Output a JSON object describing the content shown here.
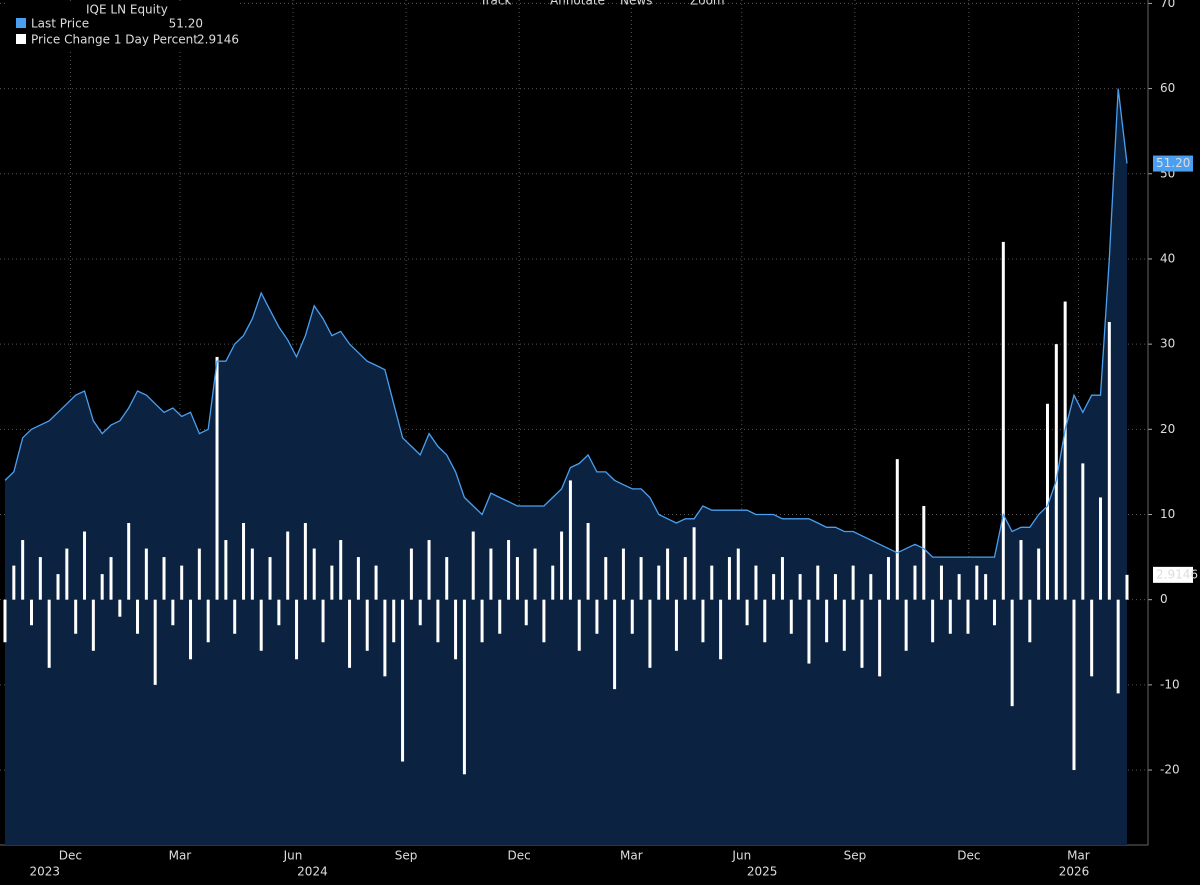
{
  "toolbar": [
    "Track",
    "Annotate",
    "News",
    "Zoom"
  ],
  "chart_data": {
    "type": "combo",
    "title": "IQE LN Equity",
    "xlim": [
      0,
      127
    ],
    "xticks": [
      {
        "value": 7.4,
        "label": "Dec"
      },
      {
        "value": 19.8,
        "label": "Mar"
      },
      {
        "value": 32.6,
        "label": "Jun"
      },
      {
        "value": 45.4,
        "label": "Sep"
      },
      {
        "value": 58.2,
        "label": "Dec"
      },
      {
        "value": 70.9,
        "label": "Mar"
      },
      {
        "value": 83.4,
        "label": "Jun"
      },
      {
        "value": 96.2,
        "label": "Sep"
      },
      {
        "value": 109.1,
        "label": "Dec"
      },
      {
        "value": 121.5,
        "label": "Mar"
      }
    ],
    "years": [
      {
        "value": 4.5,
        "label": "2023"
      },
      {
        "value": 34.8,
        "label": "2024"
      },
      {
        "value": 85.7,
        "label": "2025"
      },
      {
        "value": 121,
        "label": "2026"
      }
    ],
    "ylim": [
      -28.8,
      70.4
    ],
    "yticks": [
      70,
      60,
      50,
      40,
      30,
      20,
      10,
      0,
      -10,
      -20
    ],
    "grid": true,
    "series": [
      {
        "name": "Last Price",
        "type": "area",
        "color": "#4a9ff0",
        "fill": "#0b2240",
        "legend_value": "51.20",
        "values": [
          14,
          15,
          19,
          20,
          20.5,
          21,
          22,
          23,
          24,
          24.5,
          21,
          19.5,
          20.5,
          21,
          22.5,
          24.5,
          24,
          23,
          22,
          22.5,
          21.5,
          22,
          19.5,
          20,
          28,
          28,
          30,
          31,
          33,
          36,
          34,
          32,
          30.5,
          28.5,
          31,
          34.5,
          33,
          31,
          31.5,
          30,
          29,
          28,
          27.5,
          27,
          23,
          19,
          18,
          17,
          19.5,
          18,
          17,
          15,
          12,
          11,
          10,
          12.5,
          12,
          11.5,
          11,
          11,
          11,
          11,
          12,
          13,
          15.5,
          16,
          17,
          15,
          15,
          14,
          13.5,
          13,
          13,
          12,
          10,
          9.5,
          9,
          9.5,
          9.5,
          11,
          10.5,
          10.5,
          10.5,
          10.5,
          10.5,
          10,
          10,
          10,
          9.5,
          9.5,
          9.5,
          9.5,
          9,
          8.5,
          8.5,
          8,
          8,
          7.5,
          7,
          6.5,
          6,
          5.5,
          6,
          6.5,
          6,
          5,
          5,
          5,
          5,
          5,
          5,
          5,
          5,
          10,
          8,
          8.5,
          8.5,
          10,
          11,
          14,
          20,
          24,
          22,
          24,
          24,
          40,
          60,
          51.2
        ]
      },
      {
        "name": "Price Change 1 Day Percent",
        "type": "bar",
        "color": "#ffffff",
        "legend_value": "2.9146",
        "values": [
          -5,
          4,
          7,
          -3,
          5,
          -8,
          3,
          6,
          -4,
          8,
          -6,
          3,
          5,
          -2,
          9,
          -4,
          6,
          -10,
          5,
          -3,
          4,
          -7,
          6,
          -5,
          28.5,
          7,
          -4,
          9,
          6,
          -6,
          5,
          -3,
          8,
          -7,
          9,
          6,
          -5,
          4,
          7,
          -8,
          5,
          -6,
          4,
          -9,
          -5,
          -19,
          6,
          -3,
          7,
          -5,
          5,
          -7,
          -20.5,
          8,
          -5,
          6,
          -4,
          7,
          5,
          -3,
          6,
          -5,
          4,
          8,
          14,
          -6,
          9,
          -4,
          5,
          -10.5,
          6,
          -4,
          5,
          -8,
          4,
          6,
          -6,
          5,
          8.5,
          -5,
          4,
          -7,
          5,
          6,
          -3,
          4,
          -5,
          3,
          5,
          -4,
          3,
          -7.5,
          4,
          -5,
          3,
          -6,
          4,
          -8,
          3,
          -9,
          5,
          16.5,
          -6,
          4,
          11,
          -5,
          4,
          -4,
          3,
          -4,
          4,
          3,
          -3,
          42,
          -12.5,
          7,
          -5,
          6,
          23,
          30,
          35,
          -20,
          16,
          -9,
          12,
          32.6,
          -11,
          2.9146
        ]
      }
    ]
  }
}
